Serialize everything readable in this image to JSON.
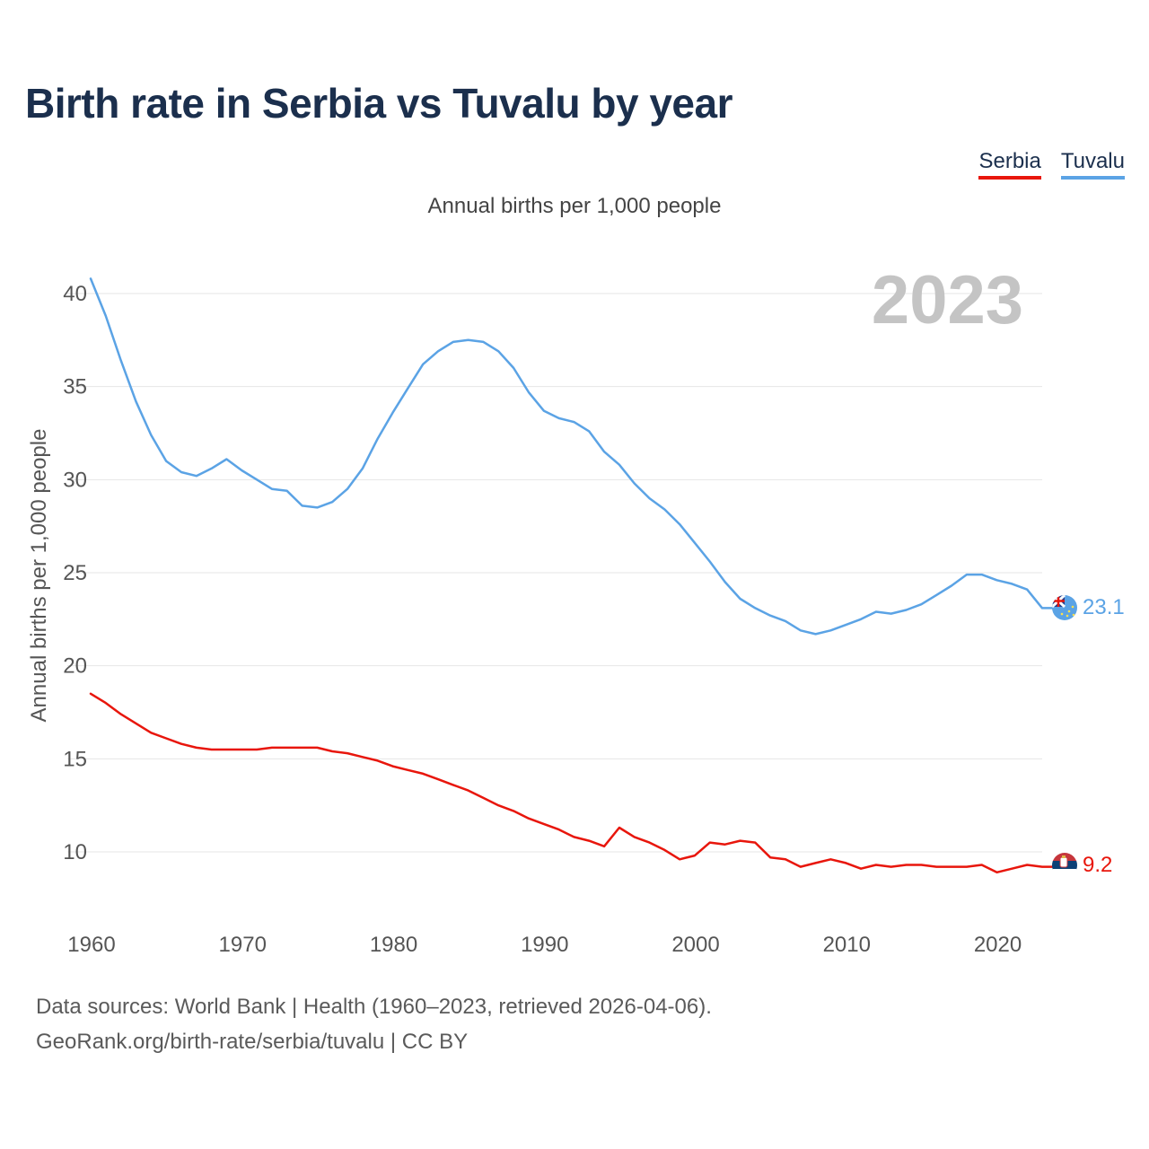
{
  "title": "Birth rate in Serbia vs Tuvalu by year",
  "legend": {
    "serbia": "Serbia",
    "tuvalu": "Tuvalu"
  },
  "subtitle": "Annual births per 1,000 people",
  "year_watermark": "2023",
  "footer": {
    "line1": "Data sources: World Bank | Health (1960–2023, retrieved 2026-04-06).",
    "line2": "GeoRank.org/birth-rate/serbia/tuvalu | CC BY"
  },
  "colors": {
    "serbia": "#e8160c",
    "tuvalu": "#5ba3e5",
    "grid": "#e6e6e6",
    "tick": "#555555"
  },
  "chart_data": {
    "type": "line",
    "title": "Birth rate in Serbia vs Tuvalu by year",
    "ylabel": "Annual births per 1,000 people",
    "xlabel": "",
    "xlim": [
      1960,
      2023
    ],
    "ylim": [
      7,
      42
    ],
    "x_ticks": [
      1960,
      1970,
      1980,
      1990,
      2000,
      2010,
      2020
    ],
    "y_ticks": [
      10,
      15,
      20,
      25,
      30,
      35,
      40
    ],
    "x": [
      1960,
      1961,
      1962,
      1963,
      1964,
      1965,
      1966,
      1967,
      1968,
      1969,
      1970,
      1971,
      1972,
      1973,
      1974,
      1975,
      1976,
      1977,
      1978,
      1979,
      1980,
      1981,
      1982,
      1983,
      1984,
      1985,
      1986,
      1987,
      1988,
      1989,
      1990,
      1991,
      1992,
      1993,
      1994,
      1995,
      1996,
      1997,
      1998,
      1999,
      2000,
      2001,
      2002,
      2003,
      2004,
      2005,
      2006,
      2007,
      2008,
      2009,
      2010,
      2011,
      2012,
      2013,
      2014,
      2015,
      2016,
      2017,
      2018,
      2019,
      2020,
      2021,
      2022,
      2023
    ],
    "series": [
      {
        "name": "Tuvalu",
        "color": "#5ba3e5",
        "end_label": "23.1",
        "values": [
          40.8,
          38.8,
          36.4,
          34.2,
          32.4,
          31.0,
          30.4,
          30.2,
          30.6,
          31.1,
          30.5,
          30.0,
          29.5,
          29.4,
          28.6,
          28.5,
          28.8,
          29.5,
          30.6,
          32.2,
          33.6,
          34.9,
          36.2,
          36.9,
          37.4,
          37.5,
          37.4,
          36.9,
          36.0,
          34.7,
          33.7,
          33.3,
          33.1,
          32.6,
          31.5,
          30.8,
          29.8,
          29.0,
          28.4,
          27.6,
          26.6,
          25.6,
          24.5,
          23.6,
          23.1,
          22.7,
          22.4,
          21.9,
          21.7,
          21.9,
          22.2,
          22.5,
          22.9,
          22.8,
          23.0,
          23.3,
          23.8,
          24.3,
          24.9,
          24.9,
          24.6,
          24.4,
          24.1,
          23.1
        ]
      },
      {
        "name": "Serbia",
        "color": "#e8160c",
        "end_label": "9.2",
        "values": [
          18.5,
          18.0,
          17.4,
          16.9,
          16.4,
          16.1,
          15.8,
          15.6,
          15.5,
          15.5,
          15.5,
          15.5,
          15.6,
          15.6,
          15.6,
          15.6,
          15.4,
          15.3,
          15.1,
          14.9,
          14.6,
          14.4,
          14.2,
          13.9,
          13.6,
          13.3,
          12.9,
          12.5,
          12.2,
          11.8,
          11.5,
          11.2,
          10.8,
          10.6,
          10.3,
          11.3,
          10.8,
          10.5,
          10.1,
          9.6,
          9.8,
          10.5,
          10.4,
          10.6,
          10.5,
          9.7,
          9.6,
          9.2,
          9.4,
          9.6,
          9.4,
          9.1,
          9.3,
          9.2,
          9.3,
          9.3,
          9.2,
          9.2,
          9.2,
          9.3,
          8.9,
          9.1,
          9.3,
          9.2
        ]
      }
    ]
  }
}
